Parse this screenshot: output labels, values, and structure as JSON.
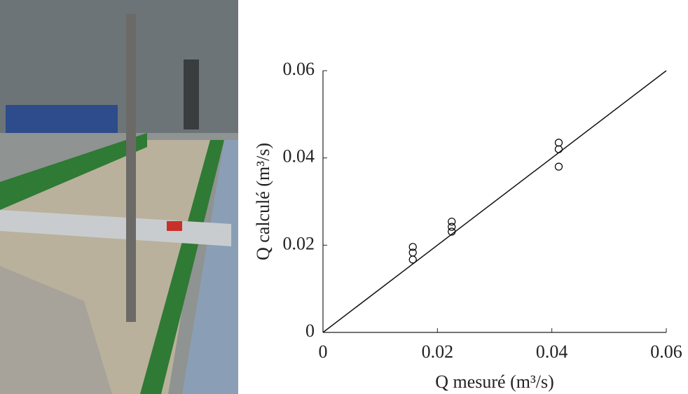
{
  "chart_data": {
    "type": "scatter",
    "x_label": "Q mesuré (m³/s)",
    "y_label": "Q calculé (m³/s)",
    "x": [
      0.0157,
      0.0157,
      0.0157,
      0.0225,
      0.0225,
      0.0225,
      0.0412,
      0.0412,
      0.0412
    ],
    "values": [
      0.0196,
      0.0183,
      0.0167,
      0.0254,
      0.0242,
      0.0231,
      0.0435,
      0.042,
      0.038
    ],
    "color": "#000000",
    "reference_line": {
      "x": [
        0,
        0.06
      ],
      "y": [
        0,
        0.06
      ]
    },
    "xlim": [
      0,
      0.06
    ],
    "xticks": [
      0,
      0.02,
      0.04,
      0.06
    ],
    "ylim": [
      0,
      0.06
    ],
    "yticks": [
      0,
      0.02,
      0.04,
      0.06
    ],
    "grid": false
  }
}
